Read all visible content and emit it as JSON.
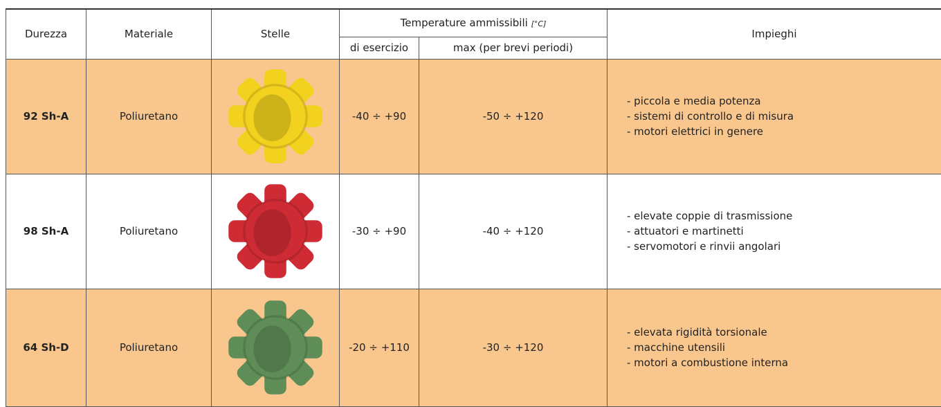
{
  "header": {
    "durezza": "Durezza",
    "materiale": "Materiale",
    "stelle": "Stelle",
    "temperature": "Temperature ammissibili",
    "unit": "[°C]",
    "esercizio": "di esercizio",
    "max": "max (per brevi periodi)",
    "impieghi": "Impieghi"
  },
  "rows": [
    {
      "durezza": "92 Sh-A",
      "materiale": "Poliuretano",
      "esercizio": "-40 ÷ +90",
      "max": "-50 ÷ +120",
      "impieghi": [
        "- piccola e media potenza",
        "- sistemi di controllo e di misura",
        "- motori elettrici in genere"
      ]
    },
    {
      "durezza": "98 Sh-A",
      "materiale": "Poliuretano",
      "esercizio": "-30 ÷ +90",
      "max": "-40 ÷ +120",
      "impieghi": [
        "- elevate coppie di trasmissione",
        "- attuatori e martinetti",
        "- servomotori e rinvii angolari"
      ]
    },
    {
      "durezza": "64 Sh-D",
      "materiale": "Poliuretano",
      "esercizio": "-20 ÷ +110",
      "max": "-30 ÷ +120",
      "impieghi": [
        "- elevata rigidità torsionale",
        "- macchine utensili",
        "- motori a combustione interna"
      ]
    }
  ]
}
